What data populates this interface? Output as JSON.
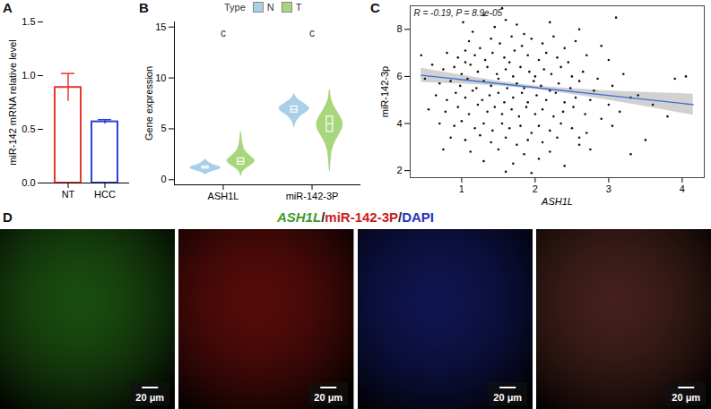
{
  "chart_data": [
    {
      "panel": "A",
      "type": "bar",
      "categories": [
        "NT",
        "HCC"
      ],
      "values": [
        0.89,
        0.57
      ],
      "errors": [
        0.13,
        0.02
      ],
      "colors": [
        "#e8392f",
        "#2f3fd8"
      ],
      "y_label": "miR-142 mRNA relative level",
      "ylim": [
        0,
        1.5
      ],
      "yticks": [
        {
          "value": 0,
          "label": "0.0"
        },
        0.5,
        {
          "value": 1,
          "label": "1.0"
        },
        1.5
      ]
    },
    {
      "panel": "B",
      "type": "violin",
      "y_label": "Gene expression",
      "categories": [
        "ASH1L",
        "miR-142-3P"
      ],
      "legend": "top",
      "legend_title": "Type",
      "series": [
        {
          "name": "N",
          "color": "#a9cfe9"
        },
        {
          "name": "T",
          "color": "#a8d67c"
        }
      ],
      "violins": [
        {
          "category": "ASH1L",
          "group": "N",
          "y": [
            0.55,
            0.8,
            1.0,
            1.15,
            1.25,
            1.4,
            1.6,
            1.8,
            2.0
          ],
          "width": [
            0,
            0.35,
            0.8,
            1.0,
            0.95,
            0.6,
            0.3,
            0.12,
            0
          ],
          "box": [
            1.1,
            1.2,
            1.3
          ]
        },
        {
          "category": "ASH1L",
          "group": "T",
          "y": [
            0.4,
            0.8,
            1.2,
            1.6,
            1.9,
            2.2,
            2.6,
            3.0,
            3.5,
            4.0,
            4.7
          ],
          "width": [
            0,
            0.1,
            0.4,
            0.8,
            0.9,
            0.7,
            0.4,
            0.2,
            0.1,
            0.05,
            0
          ],
          "box": [
            1.5,
            1.8,
            2.1
          ]
        },
        {
          "category": "miR-142-3P",
          "group": "N",
          "y": [
            5.2,
            5.8,
            6.3,
            6.7,
            7.0,
            7.3,
            7.7,
            8.0,
            8.4
          ],
          "width": [
            0,
            0.15,
            0.45,
            0.85,
            1.0,
            0.8,
            0.4,
            0.15,
            0
          ],
          "box": [
            6.6,
            6.9,
            7.2
          ]
        },
        {
          "category": "miR-142-3P",
          "group": "T",
          "y": [
            0.9,
            1.8,
            2.8,
            3.6,
            4.3,
            5.0,
            5.5,
            6.0,
            6.5,
            7.0,
            7.6,
            8.2,
            8.8
          ],
          "width": [
            0,
            0.05,
            0.12,
            0.3,
            0.55,
            0.8,
            0.85,
            0.75,
            0.55,
            0.35,
            0.15,
            0.05,
            0
          ],
          "box": [
            4.7,
            5.5,
            6.2
          ]
        }
      ],
      "annotations": [
        {
          "category": "ASH1L",
          "y": 14.4,
          "text": "c"
        },
        {
          "category": "miR-142-3P",
          "y": 14.4,
          "text": "c"
        }
      ],
      "ylim": [
        -0.5,
        15.5
      ],
      "yticks": [
        0,
        5,
        10,
        15
      ]
    },
    {
      "panel": "C",
      "type": "scatter",
      "x_label": "ASH1L",
      "y_label": "miR-142-3p",
      "annotation": "R = -0.19, P = 8.9e-05",
      "points": [
        [
          1.02,
          8.3
        ],
        [
          1.15,
          7.9
        ],
        [
          1.3,
          8.6
        ],
        [
          1.45,
          8.1
        ],
        [
          1.6,
          8.4
        ],
        [
          1.75,
          8.2
        ],
        [
          1.85,
          7.8
        ],
        [
          1.55,
          8.9
        ],
        [
          2.2,
          8.3
        ],
        [
          2.6,
          8.0
        ],
        [
          1.1,
          7.5
        ],
        [
          1.25,
          7.2
        ],
        [
          1.4,
          7.6
        ],
        [
          1.52,
          7.4
        ],
        [
          1.68,
          7.7
        ],
        [
          1.82,
          7.3
        ],
        [
          1.95,
          7.6
        ],
        [
          2.1,
          7.4
        ],
        [
          2.25,
          7.7
        ],
        [
          2.4,
          7.2
        ],
        [
          2.55,
          7.5
        ],
        [
          2.9,
          7.3
        ],
        [
          3.1,
          8.5
        ],
        [
          0.8,
          7.0
        ],
        [
          0.95,
          6.8
        ],
        [
          1.05,
          7.1
        ],
        [
          1.18,
          6.9
        ],
        [
          1.32,
          6.7
        ],
        [
          1.42,
          7.0
        ],
        [
          1.58,
          6.8
        ],
        [
          1.65,
          6.6
        ],
        [
          1.72,
          7.1
        ],
        [
          1.9,
          6.9
        ],
        [
          2.05,
          6.7
        ],
        [
          2.15,
          7.0
        ],
        [
          2.3,
          6.8
        ],
        [
          2.45,
          6.6
        ],
        [
          2.7,
          6.9
        ],
        [
          3.0,
          6.7
        ],
        [
          0.6,
          6.5
        ],
        [
          0.75,
          6.3
        ],
        [
          0.9,
          6.4
        ],
        [
          1.0,
          6.1
        ],
        [
          1.12,
          6.5
        ],
        [
          1.22,
          6.2
        ],
        [
          1.35,
          6.4
        ],
        [
          1.48,
          6.1
        ],
        [
          1.6,
          6.3
        ],
        [
          1.7,
          6.0
        ],
        [
          1.8,
          6.4
        ],
        [
          1.92,
          6.2
        ],
        [
          2.0,
          6.0
        ],
        [
          2.12,
          6.3
        ],
        [
          2.22,
          6.1
        ],
        [
          2.35,
          6.4
        ],
        [
          2.5,
          6.0
        ],
        [
          2.65,
          6.2
        ],
        [
          2.85,
          5.9
        ],
        [
          3.2,
          6.1
        ],
        [
          0.5,
          5.9
        ],
        [
          0.7,
          5.7
        ],
        [
          0.85,
          5.8
        ],
        [
          0.98,
          5.6
        ],
        [
          1.08,
          5.9
        ],
        [
          1.2,
          5.5
        ],
        [
          1.3,
          5.8
        ],
        [
          1.4,
          5.6
        ],
        [
          1.5,
          5.9
        ],
        [
          1.62,
          5.5
        ],
        [
          1.75,
          5.7
        ],
        [
          1.85,
          5.5
        ],
        [
          1.98,
          5.8
        ],
        [
          2.08,
          5.6
        ],
        [
          2.2,
          5.4
        ],
        [
          2.32,
          5.7
        ],
        [
          2.48,
          5.5
        ],
        [
          2.6,
          5.8
        ],
        [
          2.8,
          5.4
        ],
        [
          3.05,
          5.6
        ],
        [
          3.4,
          5.2
        ],
        [
          3.9,
          5.9
        ],
        [
          0.65,
          5.2
        ],
        [
          0.8,
          5.0
        ],
        [
          0.92,
          5.3
        ],
        [
          1.05,
          5.1
        ],
        [
          1.15,
          5.4
        ],
        [
          1.28,
          5.0
        ],
        [
          1.38,
          5.2
        ],
        [
          1.5,
          5.3
        ],
        [
          1.58,
          4.9
        ],
        [
          1.7,
          5.1
        ],
        [
          1.82,
          5.3
        ],
        [
          1.9,
          4.9
        ],
        [
          2.02,
          5.2
        ],
        [
          2.15,
          5.0
        ],
        [
          2.28,
          5.3
        ],
        [
          2.4,
          4.9
        ],
        [
          2.55,
          5.1
        ],
        [
          2.75,
          5.0
        ],
        [
          3.0,
          4.8
        ],
        [
          3.3,
          5.1
        ],
        [
          4.05,
          6.0
        ],
        [
          0.55,
          4.6
        ],
        [
          0.78,
          4.5
        ],
        [
          0.95,
          4.7
        ],
        [
          1.1,
          4.4
        ],
        [
          1.22,
          4.8
        ],
        [
          1.35,
          4.5
        ],
        [
          1.45,
          4.7
        ],
        [
          1.55,
          4.4
        ],
        [
          1.68,
          4.6
        ],
        [
          1.78,
          4.3
        ],
        [
          1.88,
          4.7
        ],
        [
          2.0,
          4.4
        ],
        [
          2.1,
          4.6
        ],
        [
          2.25,
          4.3
        ],
        [
          2.38,
          4.5
        ],
        [
          2.52,
          4.7
        ],
        [
          2.68,
          4.4
        ],
        [
          2.9,
          4.2
        ],
        [
          3.15,
          4.5
        ],
        [
          3.6,
          4.8
        ],
        [
          0.7,
          4.0
        ],
        [
          0.9,
          3.9
        ],
        [
          1.0,
          4.1
        ],
        [
          1.18,
          3.8
        ],
        [
          1.3,
          4.0
        ],
        [
          1.42,
          3.7
        ],
        [
          1.55,
          4.0
        ],
        [
          1.65,
          3.8
        ],
        [
          1.8,
          3.9
        ],
        [
          1.95,
          3.6
        ],
        [
          2.05,
          3.9
        ],
        [
          2.2,
          3.7
        ],
        [
          2.35,
          4.0
        ],
        [
          2.5,
          3.8
        ],
        [
          2.7,
          3.6
        ],
        [
          3.05,
          3.9
        ],
        [
          3.5,
          3.3
        ],
        [
          0.85,
          3.4
        ],
        [
          1.05,
          3.3
        ],
        [
          1.25,
          3.5
        ],
        [
          1.4,
          3.2
        ],
        [
          1.6,
          3.4
        ],
        [
          1.75,
          3.1
        ],
        [
          1.9,
          3.3
        ],
        [
          2.1,
          3.2
        ],
        [
          2.3,
          3.4
        ],
        [
          2.6,
          3.1
        ],
        [
          0.75,
          2.9
        ],
        [
          1.12,
          2.8
        ],
        [
          1.5,
          2.9
        ],
        [
          1.85,
          2.7
        ],
        [
          2.2,
          2.8
        ],
        [
          2.75,
          2.9
        ],
        [
          3.3,
          2.7
        ],
        [
          1.3,
          2.4
        ],
        [
          1.7,
          2.3
        ],
        [
          2.05,
          2.5
        ],
        [
          2.4,
          2.2
        ],
        [
          1.95,
          1.9
        ],
        [
          1.6,
          1.95
        ],
        [
          0.45,
          6.9
        ],
        [
          3.8,
          4.3
        ],
        [
          1.05,
          6.6
        ],
        [
          2.6,
          3.4
        ]
      ],
      "fit": {
        "x": [
          0.45,
          4.15
        ],
        "y": [
          6.05,
          4.8
        ]
      },
      "band": {
        "x": [
          0.45,
          1.0,
          1.5,
          2.0,
          2.5,
          3.0,
          3.5,
          4.15
        ],
        "lower": [
          5.75,
          5.68,
          5.6,
          5.45,
          5.24,
          4.99,
          4.72,
          4.35
        ],
        "upper": [
          6.35,
          6.05,
          5.8,
          5.6,
          5.48,
          5.39,
          5.32,
          5.25
        ]
      },
      "xlim": [
        0.3,
        4.3
      ],
      "xticks": [
        1,
        2,
        3,
        4
      ],
      "ylim": [
        1.7,
        9.0
      ],
      "yticks": [
        2,
        4,
        6,
        8
      ]
    }
  ],
  "image_panel": {
    "panel": "D",
    "title": [
      {
        "text": "ASH1L",
        "color": "#3f9a2a"
      },
      {
        "text": "/",
        "color": "#222222"
      },
      {
        "text": "miR-142-3P",
        "color": "#c8201e"
      },
      {
        "text": "/",
        "color": "#222222"
      },
      {
        "text": "DAPI",
        "color": "#2233bb"
      }
    ],
    "images": [
      {
        "color": "#2f8a1c",
        "scale_bar": "20 μm"
      },
      {
        "color": "#9a1510",
        "scale_bar": "20 μm"
      },
      {
        "color": "#1c2590",
        "scale_bar": "20 μm"
      },
      {
        "color": "#7a3a30",
        "scale_bar": "20 μm"
      }
    ]
  }
}
